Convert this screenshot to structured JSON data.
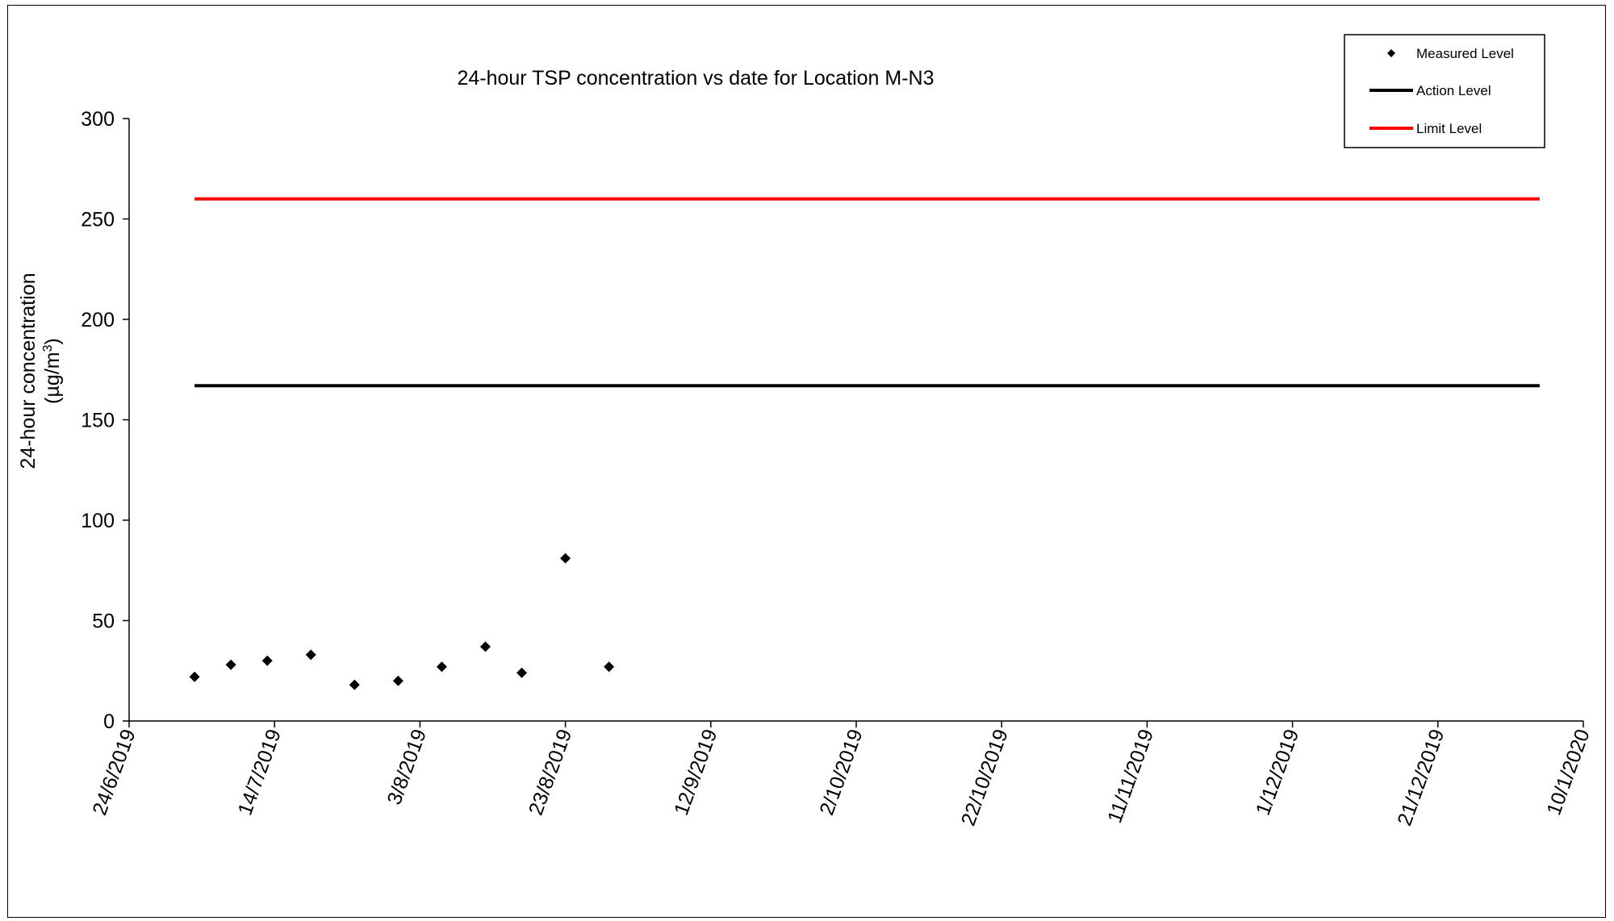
{
  "chart_data": {
    "type": "scatter",
    "title": "24-hour TSP concentration vs date for Location M-N3",
    "ylabel": "24-hour concentration",
    "ylabel_unit_prefix": "(µg/m",
    "ylabel_unit_sup": "3",
    "ylabel_unit_suffix": ")",
    "xlabel": "",
    "ylim": [
      0,
      300
    ],
    "y_ticks": [
      0,
      50,
      100,
      150,
      200,
      250,
      300
    ],
    "xlim": [
      "2019-06-24",
      "2020-01-10"
    ],
    "x_ticks": [
      {
        "date": "2019-06-24",
        "label": "24/6/2019"
      },
      {
        "date": "2019-07-14",
        "label": "14/7/2019"
      },
      {
        "date": "2019-08-03",
        "label": "3/8/2019"
      },
      {
        "date": "2019-08-23",
        "label": "23/8/2019"
      },
      {
        "date": "2019-09-12",
        "label": "12/9/2019"
      },
      {
        "date": "2019-10-02",
        "label": "2/10/2019"
      },
      {
        "date": "2019-10-22",
        "label": "22/10/2019"
      },
      {
        "date": "2019-11-11",
        "label": "11/11/2019"
      },
      {
        "date": "2019-12-01",
        "label": "1/12/2019"
      },
      {
        "date": "2019-12-21",
        "label": "21/12/2019"
      },
      {
        "date": "2020-01-10",
        "label": "10/1/2020"
      }
    ],
    "grid": false,
    "legend_position": "top-right",
    "series": [
      {
        "name": "Measured Level",
        "type": "scatter",
        "marker": "diamond",
        "color": "#000000",
        "points": [
          {
            "x": "2019-07-03",
            "y": 22
          },
          {
            "x": "2019-07-08",
            "y": 28
          },
          {
            "x": "2019-07-13",
            "y": 30
          },
          {
            "x": "2019-07-19",
            "y": 33
          },
          {
            "x": "2019-07-25",
            "y": 18
          },
          {
            "x": "2019-07-31",
            "y": 20
          },
          {
            "x": "2019-08-06",
            "y": 27
          },
          {
            "x": "2019-08-12",
            "y": 37
          },
          {
            "x": "2019-08-17",
            "y": 24
          },
          {
            "x": "2019-08-23",
            "y": 81
          },
          {
            "x": "2019-08-29",
            "y": 27
          }
        ]
      },
      {
        "name": "Action Level",
        "type": "line",
        "color": "#000000",
        "points": [
          {
            "x": "2019-07-03",
            "y": 167
          },
          {
            "x": "2020-01-04",
            "y": 167
          }
        ]
      },
      {
        "name": "Limit Level",
        "type": "line",
        "color": "#ff0000",
        "points": [
          {
            "x": "2019-07-03",
            "y": 260
          },
          {
            "x": "2020-01-04",
            "y": 260
          }
        ]
      }
    ]
  }
}
